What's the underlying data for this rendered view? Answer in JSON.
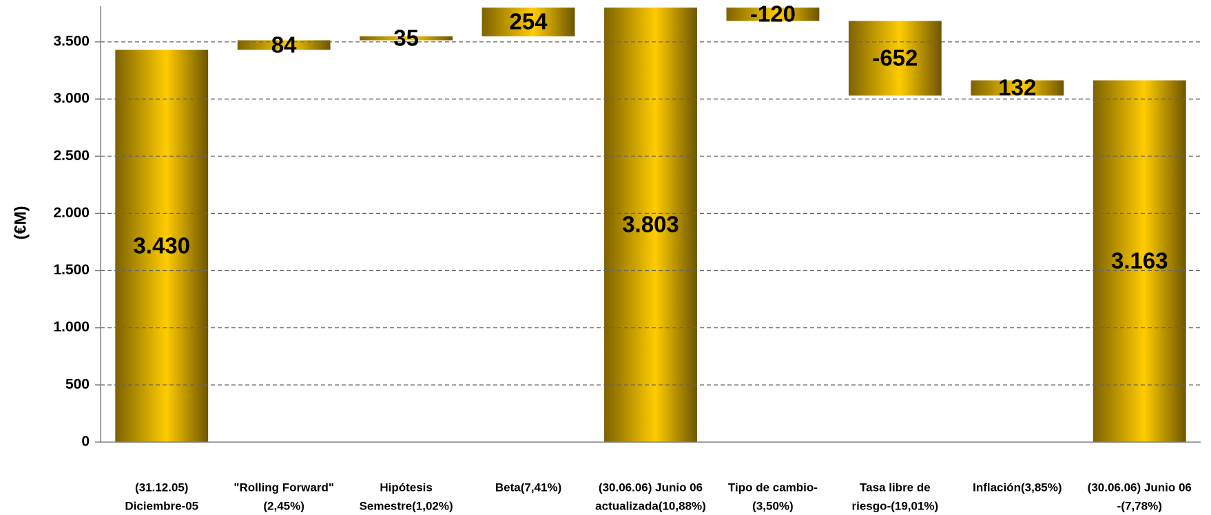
{
  "chart_data": {
    "type": "waterfall",
    "y_label": "(€M)",
    "categories": [
      [
        "(31.12.05)",
        "Diciembre-05"
      ],
      [
        "\"Rolling Forward\"",
        "(2,45%)"
      ],
      [
        "Hipótesis",
        "Semestre(1,02%)"
      ],
      [
        "Beta(7,41%)"
      ],
      [
        "(30.06.06) Junio 06",
        "actualizada(10,88%)"
      ],
      [
        "Tipo de cambio-",
        "(3,50%)"
      ],
      [
        "Tasa libre de",
        "riesgo-(19,01%)"
      ],
      [
        "Inflación(3,85%)"
      ],
      [
        "(30.06.06) Junio 06",
        "-(7,78%)"
      ]
    ],
    "values": [
      3430,
      84,
      35,
      254,
      3803,
      -120,
      -652,
      132,
      3163
    ],
    "value_labels": [
      "3.430",
      "84",
      "35",
      "254",
      "3.803",
      "-120",
      "-652",
      "132",
      "3.163"
    ],
    "is_total": [
      true,
      false,
      false,
      false,
      true,
      false,
      false,
      false,
      true
    ],
    "color": "#ffcc00",
    "ylim": [
      0,
      3800
    ],
    "yticks": [
      0,
      500,
      {
        "value": 1000,
        "label": "1.000"
      },
      {
        "value": 1500,
        "label": "1.500"
      },
      {
        "value": 2000,
        "label": "2.000"
      },
      {
        "value": 2500,
        "label": "2.500"
      },
      {
        "value": 3000,
        "label": "3.000"
      },
      {
        "value": 3500,
        "label": "3.500"
      }
    ],
    "grid": true
  }
}
